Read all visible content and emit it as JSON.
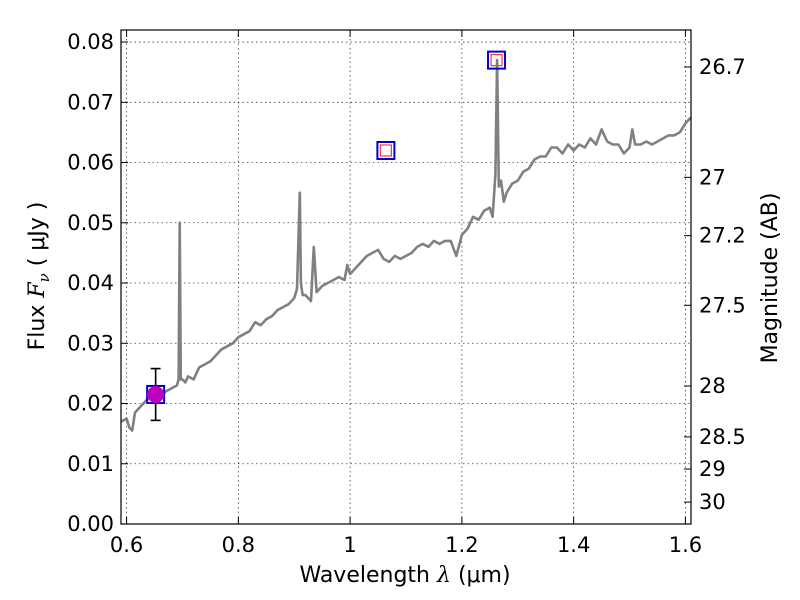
{
  "chart_data": {
    "type": "line",
    "xlabel_prefix": "Wavelength",
    "xlabel_symbol": "λ",
    "xlabel_unit": "(μm)",
    "ylabel_prefix": "Flux",
    "ylabel_symbol": "F",
    "ylabel_sub": "ν",
    "ylabel_unit": "( μJy )",
    "y2label": "Magnitude (AB)",
    "xlim": [
      0.59,
      1.61
    ],
    "ylim": [
      0.0,
      0.082
    ],
    "grid": true,
    "x_ticks": [
      0.6,
      0.8,
      1.0,
      1.2,
      1.4,
      1.6
    ],
    "x_tick_labels": [
      "0.6",
      "0.8",
      "1",
      "1.2",
      "1.4",
      "1.6"
    ],
    "y_ticks": [
      0.0,
      0.01,
      0.02,
      0.03,
      0.04,
      0.05,
      0.06,
      0.07,
      0.08
    ],
    "y_tick_labels": [
      "0.00",
      "0.01",
      "0.02",
      "0.03",
      "0.04",
      "0.05",
      "0.06",
      "0.07",
      "0.08"
    ],
    "mag_ticks": [
      26.7,
      27,
      27.2,
      27.5,
      28,
      28.5,
      29,
      30
    ],
    "mag_tick_labels": [
      "26.7",
      "27",
      "27.2",
      "27.5",
      "28",
      "28.5",
      "29",
      "30"
    ],
    "colors": {
      "spectrum": "#808080",
      "model_box_outer": "#0000cc",
      "model_box_inner": "#ff3333",
      "observed_point": "#bf00bf",
      "error_bar": "#000000"
    },
    "series": [
      {
        "type": "line",
        "x": [
          0.59,
          0.6,
          0.605,
          0.61,
          0.615,
          0.62,
          0.63,
          0.64,
          0.65,
          0.66,
          0.67,
          0.68,
          0.69,
          0.693,
          0.695,
          0.697,
          0.7,
          0.705,
          0.71,
          0.72,
          0.73,
          0.74,
          0.75,
          0.76,
          0.77,
          0.78,
          0.79,
          0.8,
          0.81,
          0.82,
          0.83,
          0.84,
          0.85,
          0.86,
          0.87,
          0.88,
          0.89,
          0.9,
          0.905,
          0.91,
          0.912,
          0.915,
          0.92,
          0.93,
          0.935,
          0.94,
          0.95,
          0.96,
          0.97,
          0.98,
          0.99,
          0.995,
          1.0,
          1.01,
          1.02,
          1.03,
          1.04,
          1.05,
          1.06,
          1.07,
          1.08,
          1.09,
          1.1,
          1.11,
          1.12,
          1.13,
          1.14,
          1.15,
          1.16,
          1.17,
          1.18,
          1.19,
          1.2,
          1.21,
          1.22,
          1.23,
          1.24,
          1.25,
          1.255,
          1.26,
          1.263,
          1.266,
          1.27,
          1.275,
          1.28,
          1.29,
          1.3,
          1.31,
          1.32,
          1.33,
          1.34,
          1.35,
          1.36,
          1.37,
          1.38,
          1.39,
          1.4,
          1.41,
          1.42,
          1.43,
          1.44,
          1.45,
          1.46,
          1.47,
          1.48,
          1.49,
          1.5,
          1.505,
          1.51,
          1.52,
          1.53,
          1.54,
          1.55,
          1.56,
          1.57,
          1.58,
          1.59,
          1.6,
          1.61
        ],
        "y": [
          0.017,
          0.0175,
          0.016,
          0.0155,
          0.0185,
          0.019,
          0.02,
          0.021,
          0.0205,
          0.021,
          0.022,
          0.0225,
          0.023,
          0.024,
          0.05,
          0.024,
          0.024,
          0.0235,
          0.0245,
          0.024,
          0.026,
          0.0265,
          0.027,
          0.028,
          0.029,
          0.0295,
          0.03,
          0.031,
          0.0315,
          0.032,
          0.0335,
          0.033,
          0.034,
          0.0345,
          0.0355,
          0.036,
          0.0365,
          0.0375,
          0.039,
          0.055,
          0.04,
          0.038,
          0.038,
          0.037,
          0.046,
          0.0385,
          0.0395,
          0.04,
          0.0405,
          0.041,
          0.0405,
          0.043,
          0.0415,
          0.0425,
          0.0435,
          0.0445,
          0.045,
          0.0455,
          0.044,
          0.0435,
          0.0445,
          0.044,
          0.0445,
          0.045,
          0.046,
          0.0465,
          0.046,
          0.047,
          0.0465,
          0.047,
          0.047,
          0.0445,
          0.048,
          0.049,
          0.051,
          0.0505,
          0.052,
          0.0525,
          0.051,
          0.058,
          0.077,
          0.056,
          0.057,
          0.0535,
          0.055,
          0.0565,
          0.057,
          0.0585,
          0.059,
          0.0605,
          0.061,
          0.061,
          0.0625,
          0.0625,
          0.0615,
          0.063,
          0.062,
          0.063,
          0.0625,
          0.064,
          0.063,
          0.0655,
          0.0635,
          0.063,
          0.063,
          0.0615,
          0.0625,
          0.0655,
          0.063,
          0.063,
          0.0635,
          0.063,
          0.0635,
          0.064,
          0.0645,
          0.0645,
          0.065,
          0.0665,
          0.0675
        ]
      },
      {
        "type": "markers",
        "x": [
          0.652,
          1.064,
          1.262
        ],
        "y": [
          0.0215,
          0.062,
          0.077
        ]
      },
      {
        "type": "errorbar",
        "x": [
          0.652
        ],
        "y": [
          0.0215
        ],
        "yerr": [
          0.0043
        ]
      }
    ]
  }
}
